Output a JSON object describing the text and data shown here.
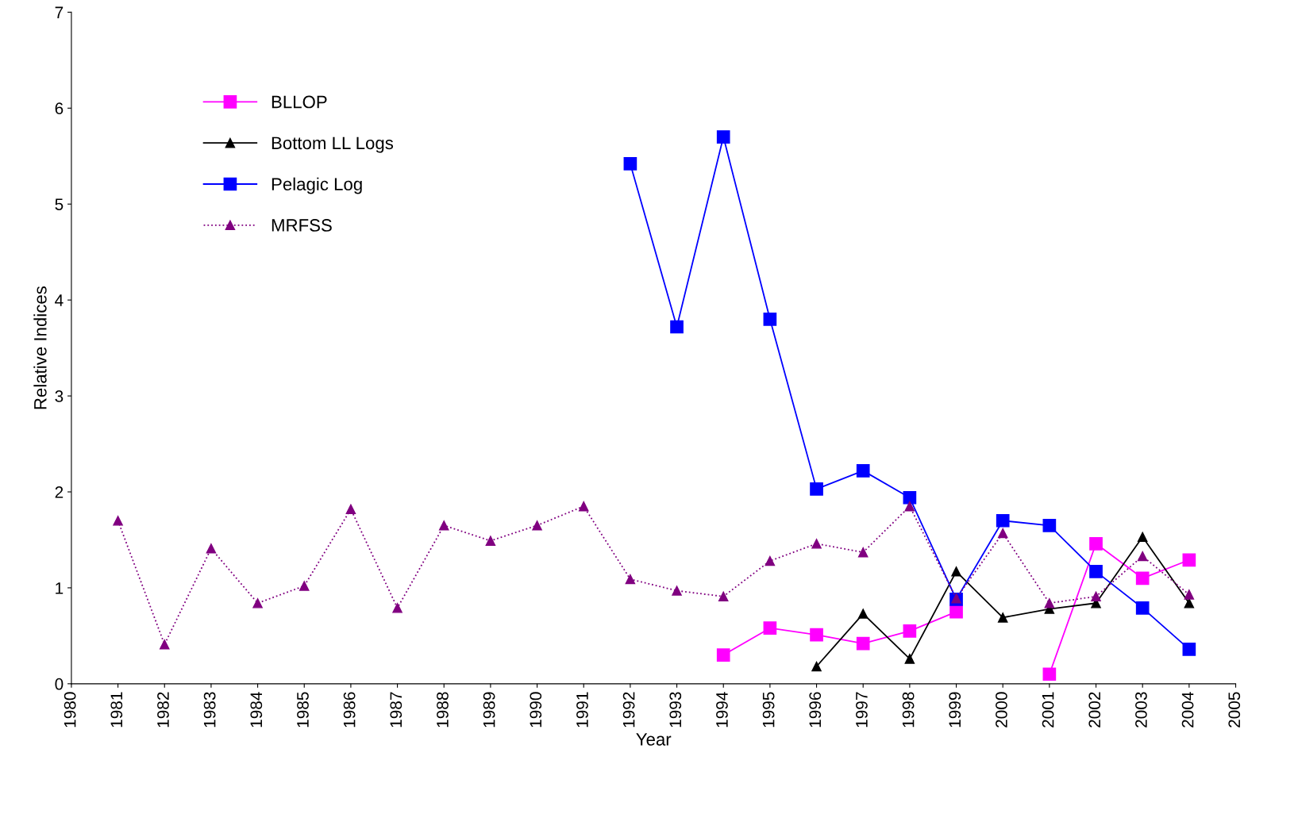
{
  "chart_data": {
    "type": "line",
    "xlabel": "Year",
    "ylabel": "Relative Indices",
    "x": [
      1981,
      1982,
      1983,
      1984,
      1985,
      1986,
      1987,
      1988,
      1989,
      1990,
      1991,
      1992,
      1993,
      1994,
      1995,
      1996,
      1997,
      1998,
      1999,
      2000,
      2001,
      2002,
      2003,
      2004
    ],
    "xlim": [
      1980,
      2005
    ],
    "xticks": [
      1980,
      1981,
      1982,
      1983,
      1984,
      1985,
      1986,
      1987,
      1988,
      1989,
      1990,
      1991,
      1992,
      1993,
      1994,
      1995,
      1996,
      1997,
      1998,
      1999,
      2000,
      2001,
      2002,
      2003,
      2004,
      2005
    ],
    "ylim": [
      0,
      7
    ],
    "yticks": [
      0,
      1,
      2,
      3,
      4,
      5,
      6,
      7
    ],
    "grid": false,
    "legend": "top left",
    "series": [
      {
        "name": "BLLOP",
        "color": "#ff00ff",
        "marker": "square",
        "line_style": "solid",
        "values": [
          null,
          null,
          null,
          null,
          null,
          null,
          null,
          null,
          null,
          null,
          null,
          null,
          null,
          0.3,
          0.58,
          0.51,
          0.42,
          0.55,
          0.75,
          null,
          0.1,
          1.46,
          1.1,
          1.29
        ]
      },
      {
        "name": "Bottom LL Logs",
        "color": "#000000",
        "marker": "triangle",
        "line_style": "solid",
        "values": [
          null,
          null,
          null,
          null,
          null,
          null,
          null,
          null,
          null,
          null,
          null,
          null,
          null,
          null,
          null,
          0.18,
          0.73,
          0.26,
          1.17,
          0.69,
          0.78,
          0.84,
          1.53,
          0.84
        ]
      },
      {
        "name": "Pelagic Log",
        "color": "#0000ff",
        "marker": "square",
        "line_style": "solid",
        "values": [
          null,
          null,
          null,
          null,
          null,
          null,
          null,
          null,
          null,
          null,
          null,
          5.42,
          3.72,
          5.7,
          3.8,
          2.03,
          2.22,
          1.94,
          0.88,
          1.7,
          1.65,
          1.17,
          0.79,
          0.36
        ]
      },
      {
        "name": "MRFSS",
        "color": "#800080",
        "marker": "triangle",
        "line_style": "dotted",
        "values": [
          1.7,
          0.41,
          1.41,
          0.84,
          1.02,
          1.82,
          0.79,
          1.65,
          1.49,
          1.65,
          1.85,
          1.09,
          0.97,
          0.91,
          1.28,
          1.46,
          1.37,
          1.85,
          0.89,
          1.57,
          0.84,
          0.91,
          1.33,
          0.93
        ]
      }
    ]
  }
}
